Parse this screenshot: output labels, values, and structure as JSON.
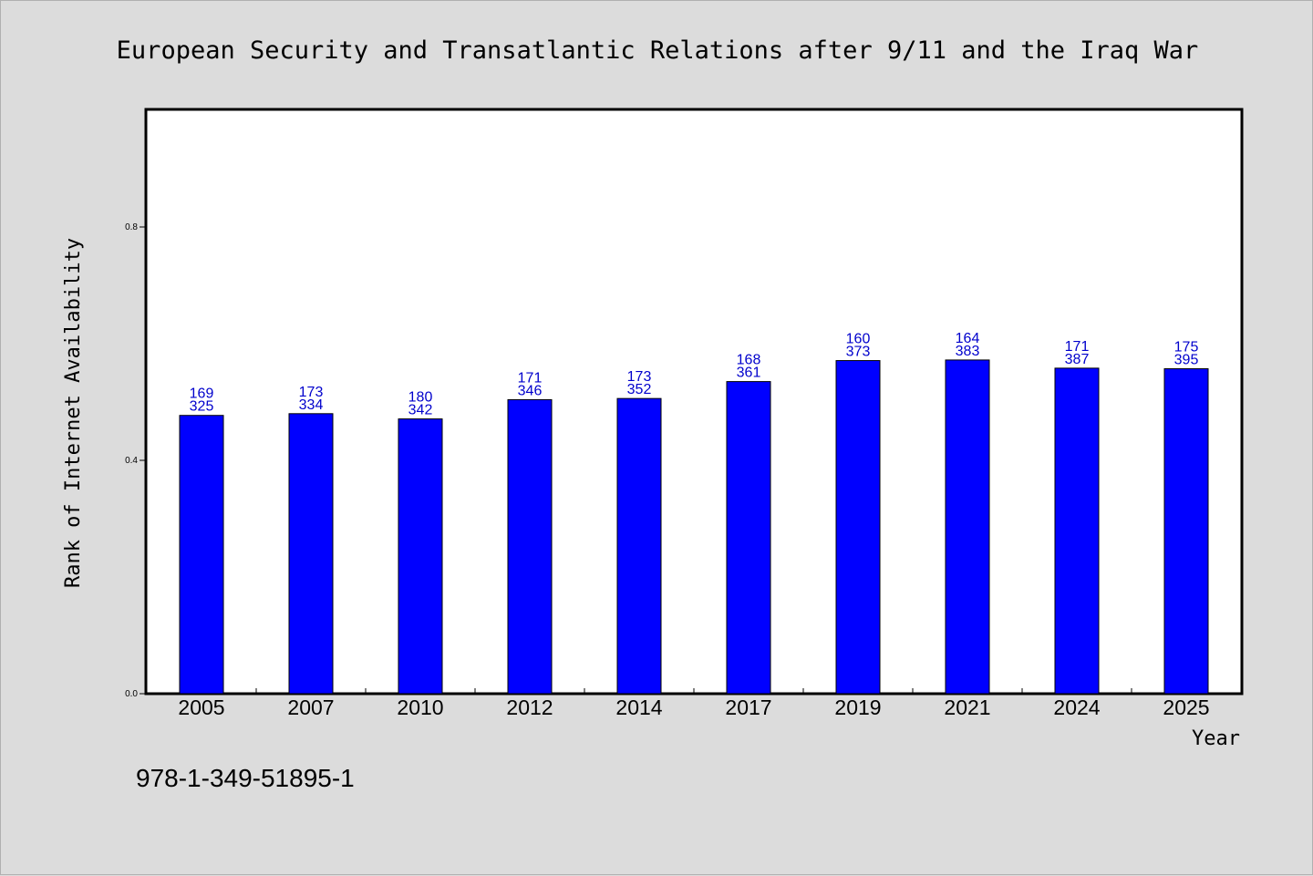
{
  "footer_code": "978-1-349-51895-1",
  "chart_data": {
    "type": "bar",
    "title": "European Security and Transatlantic Relations after 9/11 and the Iraq War",
    "xlabel": "Year",
    "ylabel": "Rank of Internet Availability",
    "ylim": [
      0,
      1
    ],
    "yticks": [
      0.0,
      0.4,
      0.8
    ],
    "ytick_labels": [
      "0.0",
      "0.4",
      "0.8"
    ],
    "grid": false,
    "bar_color": "#0000ff",
    "label_color": "#0000cc",
    "categories": [
      "2005",
      "2007",
      "2010",
      "2012",
      "2014",
      "2017",
      "2019",
      "2021",
      "2024",
      "2025"
    ],
    "values": [
      0.477,
      0.48,
      0.471,
      0.504,
      0.506,
      0.535,
      0.571,
      0.572,
      0.558,
      0.557
    ],
    "label_top": [
      "169",
      "173",
      "180",
      "171",
      "173",
      "168",
      "160",
      "164",
      "171",
      "175"
    ],
    "label_bottom": [
      "325",
      "334",
      "342",
      "346",
      "352",
      "361",
      "373",
      "383",
      "387",
      "395"
    ]
  }
}
